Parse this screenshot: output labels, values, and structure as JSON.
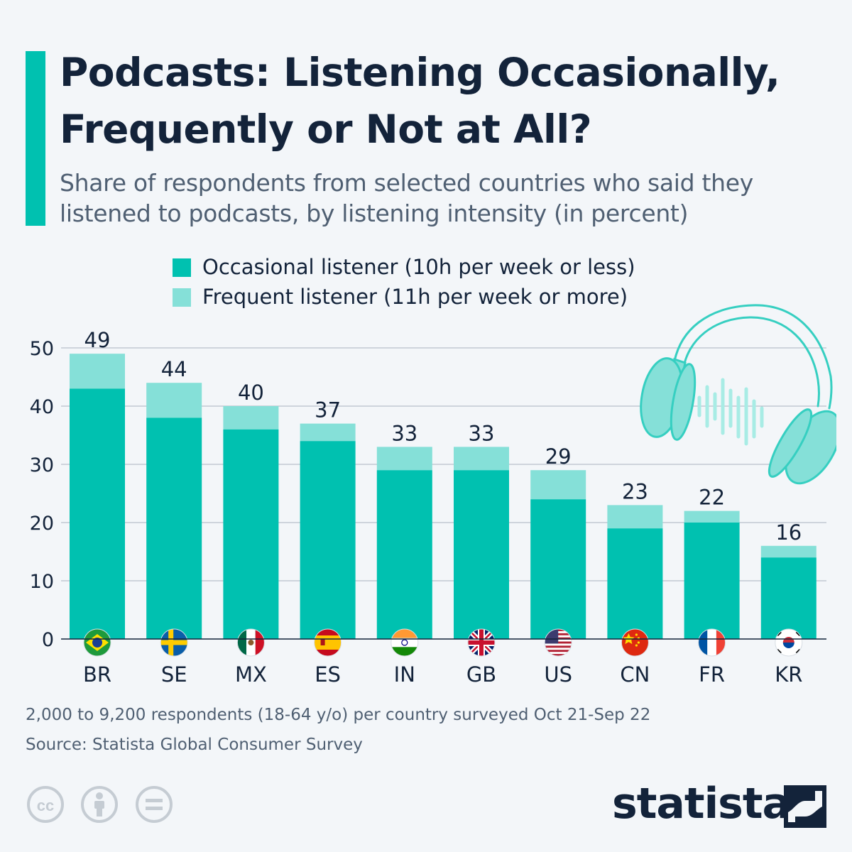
{
  "header": {
    "title": "Podcasts: Listening Occasionally, Frequently or Not at All?",
    "subtitle": "Share of respondents from selected countries who said they listened to podcasts, by listening intensity (in percent)"
  },
  "legend": {
    "items": [
      {
        "label": "Occasional listener (10h per week or less)"
      },
      {
        "label": "Frequent listener (11h per week or more)"
      }
    ]
  },
  "footer": {
    "note": "2,000 to 9,200 respondents (18-64 y/o) per country surveyed Oct 21-Sep 22",
    "source": "Source: Statista Global Consumer Survey",
    "brand": "statista"
  },
  "colors": {
    "accent": "#00c1b0",
    "occasional": "#00c1b0",
    "frequent": "#85e0d8",
    "grid": "#a9b3be",
    "text": "#13233a",
    "muted": "#4f5f72"
  },
  "icons": {
    "decor": "headphones-icon",
    "license": [
      "creative-commons-icon",
      "attribution-icon",
      "no-derivatives-icon"
    ],
    "brand": "statista-logo-icon",
    "flags": [
      "brazil-flag-icon",
      "sweden-flag-icon",
      "mexico-flag-icon",
      "spain-flag-icon",
      "india-flag-icon",
      "uk-flag-icon",
      "us-flag-icon",
      "china-flag-icon",
      "france-flag-icon",
      "korea-flag-icon"
    ]
  },
  "chart_data": {
    "type": "bar",
    "stacked": true,
    "title": "Podcasts: Listening Occasionally, Frequently or Not at All?",
    "xlabel": "",
    "ylabel": "",
    "ylim": [
      0,
      50
    ],
    "yticks": [
      0,
      10,
      20,
      30,
      40,
      50
    ],
    "grid": true,
    "legend_position": "top",
    "categories": [
      "BR",
      "SE",
      "MX",
      "ES",
      "IN",
      "GB",
      "US",
      "CN",
      "FR",
      "KR"
    ],
    "series": [
      {
        "name": "Occasional listener (10h per week or less)",
        "values": [
          43,
          38,
          36,
          34,
          29,
          29,
          24,
          19,
          20,
          14
        ]
      },
      {
        "name": "Frequent listener (11h per week or more)",
        "values": [
          6,
          6,
          4,
          3,
          4,
          4,
          5,
          4,
          2,
          2
        ]
      }
    ],
    "totals": [
      49,
      44,
      40,
      37,
      33,
      33,
      29,
      23,
      22,
      16
    ]
  }
}
